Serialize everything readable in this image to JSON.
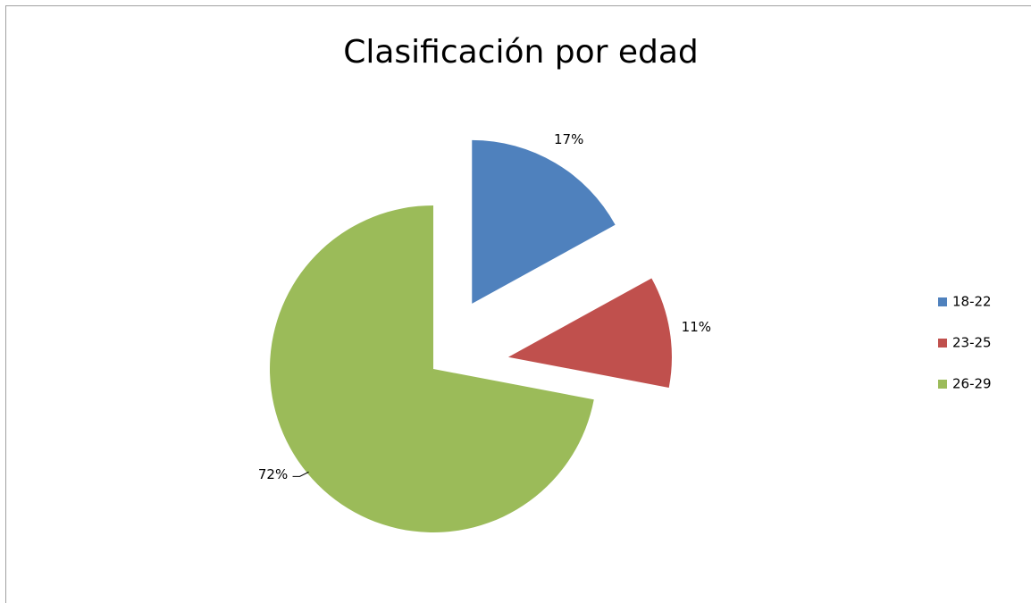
{
  "chart_data": {
    "type": "pie",
    "title": "Clasificación por edad",
    "categories": [
      "18-22",
      "23-25",
      "26-29"
    ],
    "values": [
      17,
      11,
      72
    ],
    "value_labels": [
      "17%",
      "11%",
      "72%"
    ],
    "colors": [
      "#4f81bd",
      "#c0504d",
      "#9bbb59"
    ],
    "legend": "right"
  }
}
